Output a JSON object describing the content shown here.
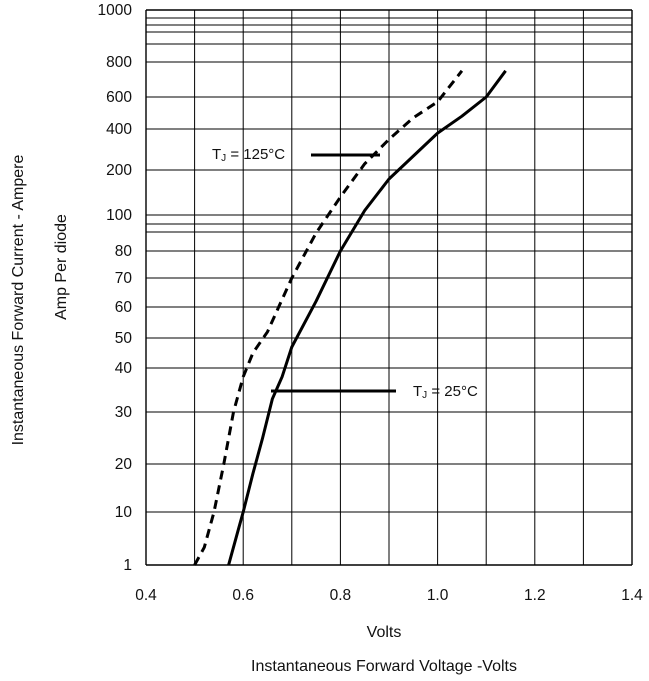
{
  "chart_data": {
    "type": "line",
    "title": "",
    "xlabel_lines": [
      "Volts",
      "Instantaneous Forward Voltage -Volts"
    ],
    "ylabel_lines": [
      "Instantaneous  Forward  Current - Ampere",
      "Amp    Per diode"
    ],
    "xlim": [
      0.4,
      1.4
    ],
    "x_ticks": [
      "0.4",
      "0.6",
      "0.8",
      "1.0",
      "1.2",
      "1.4"
    ],
    "y_scale": "non-uniform (log-like, two decades plus 1–10 segment)",
    "y_ticks": [
      "1",
      "10",
      "20",
      "30",
      "40",
      "50",
      "60",
      "70",
      "80",
      "100",
      "200",
      "400",
      "600",
      "800",
      "1000"
    ],
    "grid": true,
    "series": [
      {
        "label_prefix": "T",
        "label_subscript": "J",
        "label_suffix": " = 125°C",
        "style": "dashed",
        "x": [
          0.5,
          0.52,
          0.54,
          0.56,
          0.58,
          0.6,
          0.62,
          0.65,
          0.7,
          0.75,
          0.8,
          0.85,
          0.9,
          0.95,
          1.0,
          1.05
        ],
        "y": [
          1,
          4,
          10,
          20,
          30,
          38,
          45,
          52,
          70,
          90,
          140,
          230,
          350,
          470,
          570,
          750
        ]
      },
      {
        "label_prefix": "T",
        "label_subscript": "J",
        "label_suffix": " = 25°C",
        "style": "solid",
        "x": [
          0.57,
          0.59,
          0.6,
          0.62,
          0.64,
          0.66,
          0.68,
          0.7,
          0.75,
          0.8,
          0.85,
          0.9,
          1.0,
          1.05,
          1.1,
          1.14
        ],
        "y": [
          1,
          7,
          10,
          18,
          25,
          33,
          38,
          47,
          62,
          80,
          110,
          180,
          380,
          480,
          600,
          750
        ]
      }
    ]
  }
}
